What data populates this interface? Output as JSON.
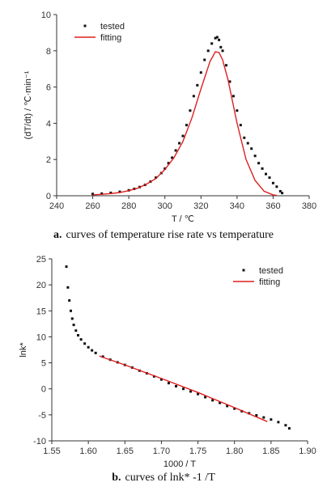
{
  "colors": {
    "tested": "#111111",
    "fitting": "#dd1f1f",
    "axis": "#333333"
  },
  "chart_data": [
    {
      "type": "scatter",
      "xlabel": "T / ℃",
      "ylabel": "(dT/dt) / ℃·min⁻¹",
      "xlim": [
        240,
        380
      ],
      "ylim": [
        0,
        10
      ],
      "xticks": [
        240,
        260,
        280,
        300,
        320,
        340,
        360,
        380
      ],
      "yticks": [
        0,
        2,
        4,
        6,
        8,
        10
      ],
      "grid": false,
      "legend_position": "top-left",
      "caption": {
        "prefix": "a.",
        "text": "curves of temperature rise rate vs temperature"
      },
      "series": [
        {
          "name": "tested",
          "kind": "markers",
          "x": [
            260,
            265,
            270,
            275,
            280,
            283,
            286,
            289,
            292,
            295,
            298,
            300,
            302,
            304,
            306,
            308,
            310,
            312,
            314,
            316,
            318,
            320,
            322,
            324,
            326,
            328,
            329,
            330,
            331,
            332,
            334,
            336,
            338,
            340,
            342,
            344,
            346,
            348,
            350,
            352,
            354,
            356,
            358,
            360,
            362,
            364,
            365
          ],
          "y": [
            0.1,
            0.12,
            0.16,
            0.22,
            0.3,
            0.38,
            0.48,
            0.6,
            0.78,
            1.0,
            1.25,
            1.5,
            1.8,
            2.1,
            2.5,
            2.9,
            3.3,
            3.9,
            4.7,
            5.5,
            6.1,
            6.8,
            7.5,
            8.0,
            8.4,
            8.7,
            8.75,
            8.6,
            8.2,
            8.0,
            7.2,
            6.3,
            5.5,
            4.7,
            3.9,
            3.2,
            2.9,
            2.6,
            2.2,
            1.8,
            1.5,
            1.2,
            1.0,
            0.7,
            0.5,
            0.25,
            0.15
          ]
        },
        {
          "name": "fitting",
          "kind": "line",
          "x": [
            260,
            265,
            270,
            275,
            280,
            285,
            290,
            295,
            300,
            305,
            310,
            315,
            320,
            325,
            328,
            330,
            332,
            335,
            340,
            345,
            350,
            355,
            360,
            362
          ],
          "y": [
            0.05,
            0.08,
            0.12,
            0.18,
            0.28,
            0.42,
            0.65,
            0.95,
            1.45,
            2.1,
            3.0,
            4.3,
            5.9,
            7.4,
            7.95,
            7.9,
            7.5,
            6.4,
            4.0,
            2.0,
            0.85,
            0.25,
            0.05,
            0.02
          ]
        }
      ]
    },
    {
      "type": "scatter",
      "xlabel": "1000 / T",
      "ylabel": "lnk*",
      "xlim": [
        1.55,
        1.9
      ],
      "ylim": [
        -10,
        25
      ],
      "xticks": [
        1.55,
        1.6,
        1.65,
        1.7,
        1.75,
        1.8,
        1.85,
        1.9
      ],
      "xtick_labels": [
        "1.55",
        "1.60",
        "1.65",
        "1.70",
        "1.75",
        "1.80",
        "1.85",
        "1.90"
      ],
      "yticks": [
        -10,
        -5,
        0,
        5,
        10,
        15,
        20,
        25
      ],
      "grid": false,
      "legend_position": "top-right",
      "caption": {
        "prefix": "b.",
        "text": "curves of lnk* -1 /T"
      },
      "series": [
        {
          "name": "tested",
          "kind": "markers",
          "x": [
            1.57,
            1.572,
            1.574,
            1.576,
            1.578,
            1.58,
            1.583,
            1.586,
            1.59,
            1.595,
            1.6,
            1.605,
            1.61,
            1.62,
            1.63,
            1.64,
            1.65,
            1.66,
            1.67,
            1.68,
            1.69,
            1.7,
            1.71,
            1.72,
            1.73,
            1.74,
            1.75,
            1.76,
            1.77,
            1.78,
            1.79,
            1.8,
            1.81,
            1.82,
            1.83,
            1.84,
            1.85,
            1.86,
            1.87,
            1.875
          ],
          "y": [
            23.5,
            19.5,
            17.0,
            15.0,
            13.5,
            12.3,
            11.2,
            10.3,
            9.5,
            8.7,
            8.0,
            7.4,
            6.9,
            6.2,
            5.6,
            5.1,
            4.6,
            4.1,
            3.5,
            3.0,
            2.4,
            1.8,
            1.1,
            0.5,
            0.0,
            -0.5,
            -1.0,
            -1.6,
            -2.2,
            -2.7,
            -3.3,
            -3.8,
            -4.3,
            -4.7,
            -5.1,
            -5.5,
            -5.9,
            -6.4,
            -7.0,
            -7.6
          ]
        },
        {
          "name": "fitting",
          "kind": "line",
          "x": [
            1.615,
            1.65,
            1.7,
            1.75,
            1.8,
            1.845
          ],
          "y": [
            6.3,
            4.6,
            2.0,
            -0.7,
            -3.6,
            -6.3
          ]
        }
      ]
    }
  ]
}
